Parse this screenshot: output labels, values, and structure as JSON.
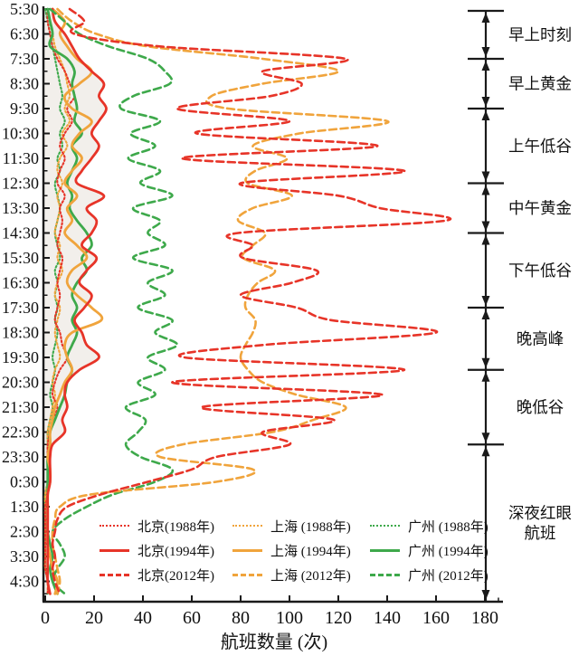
{
  "chart_data": {
    "type": "line",
    "orientation": "horizontal-time-vertical",
    "xlabel": "航班数量 (次)",
    "xlim": [
      0,
      180
    ],
    "x_ticks": [
      0,
      20,
      40,
      60,
      80,
      100,
      120,
      140,
      160,
      180
    ],
    "y_tick_labels": [
      "5:30",
      "6:30",
      "7:30",
      "8:30",
      "9:30",
      "10:30",
      "11:30",
      "12:30",
      "13:30",
      "14:30",
      "15:30",
      "16:30",
      "17:30",
      "18:30",
      "19:30",
      "20:30",
      "21:30",
      "22:30",
      "23:30",
      "0:30",
      "1:30",
      "2:30",
      "3:30",
      "4:30"
    ],
    "grid": false,
    "legend_position": "inside-bottom-left",
    "colors": {
      "beijing": "#e73428",
      "shanghai": "#f0a43c",
      "guangzhou": "#3ea94b",
      "axis": "#1a1a1a",
      "fill_under_beijing_1994": "#f2efeb"
    },
    "times": [
      "5:30",
      "6:00",
      "6:30",
      "7:00",
      "7:30",
      "8:00",
      "8:30",
      "9:00",
      "9:30",
      "10:00",
      "10:30",
      "11:00",
      "11:30",
      "12:00",
      "12:30",
      "13:00",
      "13:30",
      "14:00",
      "14:30",
      "15:00",
      "15:30",
      "16:00",
      "16:30",
      "17:00",
      "17:30",
      "18:00",
      "18:30",
      "19:00",
      "19:30",
      "20:00",
      "20:30",
      "21:00",
      "21:30",
      "22:00",
      "22:30",
      "23:00",
      "23:30",
      "0:00",
      "0:30",
      "1:00",
      "1:30",
      "2:00",
      "2:30",
      "3:00",
      "3:30",
      "4:00",
      "4:30",
      "5:00"
    ],
    "series": [
      {
        "id": "beijing-1988",
        "city": "beijing",
        "year": 1988,
        "label": "北京(1988年)",
        "style": "dotted",
        "values": [
          1,
          1,
          2,
          3,
          5,
          8,
          10,
          12,
          9,
          11,
          8,
          6,
          8,
          6,
          5,
          8,
          6,
          7,
          6,
          5,
          7,
          6,
          5,
          6,
          5,
          4,
          6,
          7,
          9,
          6,
          4,
          3,
          5,
          3,
          2,
          1,
          1,
          1,
          1,
          1,
          0,
          0,
          0,
          0,
          0,
          0,
          1,
          1
        ]
      },
      {
        "id": "beijing-1994",
        "city": "beijing",
        "year": 1994,
        "label": "北京(1994年)",
        "style": "solid",
        "area_fill": true,
        "values": [
          3,
          4,
          8,
          11,
          14,
          19,
          24,
          22,
          25,
          22,
          19,
          22,
          19,
          15,
          13,
          24,
          17,
          21,
          19,
          15,
          21,
          17,
          14,
          19,
          16,
          12,
          15,
          17,
          22,
          14,
          9,
          8,
          9,
          7,
          8,
          3,
          2,
          2,
          2,
          1,
          1,
          1,
          1,
          1,
          1,
          1,
          1,
          2
        ]
      },
      {
        "id": "beijing-2012",
        "city": "beijing",
        "year": 2012,
        "label": "北京(2012年)",
        "style": "dashed",
        "values": [
          10,
          16,
          12,
          47,
          123,
          89,
          105,
          92,
          54,
          100,
          62,
          136,
          56,
          147,
          80,
          120,
          137,
          164,
          79,
          85,
          81,
          111,
          101,
          80,
          103,
          117,
          160,
          89,
          57,
          147,
          52,
          138,
          64,
          118,
          89,
          100,
          70,
          60,
          42,
          23,
          9,
          5,
          4,
          3,
          4,
          3,
          4,
          6
        ]
      },
      {
        "id": "shanghai-1988",
        "city": "shanghai",
        "year": 1988,
        "label": "上海 (1988年)",
        "style": "dotted",
        "values": [
          1,
          2,
          3,
          4,
          6,
          8,
          9,
          10,
          8,
          10,
          7,
          9,
          6,
          5,
          7,
          5,
          6,
          5,
          4,
          6,
          5,
          7,
          5,
          4,
          6,
          5,
          4,
          5,
          6,
          4,
          3,
          4,
          3,
          2,
          1,
          1,
          1,
          1,
          1,
          0,
          0,
          0,
          0,
          0,
          0,
          0,
          1,
          1
        ]
      },
      {
        "id": "shanghai-1994",
        "city": "shanghai",
        "year": 1994,
        "label": "上海 (1994年)",
        "style": "solid",
        "values": [
          3,
          8,
          6,
          9,
          13,
          19,
          14,
          8,
          11,
          19,
          14,
          11,
          15,
          11,
          8,
          13,
          9,
          11,
          8,
          13,
          17,
          11,
          9,
          13,
          19,
          23,
          11,
          8,
          9,
          11,
          8,
          6,
          4,
          3,
          2,
          2,
          1,
          2,
          2,
          1,
          1,
          1,
          1,
          1,
          2,
          3,
          5,
          4
        ]
      },
      {
        "id": "shanghai-2012",
        "city": "shanghai",
        "year": 2012,
        "label": "上海 (2012年)",
        "style": "dashed",
        "values": [
          5,
          11,
          21,
          42,
          89,
          120,
          89,
          68,
          75,
          140,
          104,
          85,
          99,
          86,
          83,
          101,
          85,
          79,
          90,
          85,
          81,
          94,
          87,
          83,
          82,
          86,
          85,
          82,
          80,
          83,
          89,
          103,
          123,
          110,
          93,
          56,
          47,
          85,
          70,
          19,
          6,
          4,
          3,
          3,
          4,
          5,
          6,
          5
        ]
      },
      {
        "id": "guangzhou-1988",
        "city": "guangzhou",
        "year": 1988,
        "label": "广州 (1988年)",
        "style": "dotted",
        "values": [
          0,
          1,
          2,
          3,
          4,
          5,
          6,
          7,
          6,
          8,
          6,
          7,
          5,
          6,
          4,
          5,
          6,
          5,
          4,
          5,
          6,
          4,
          5,
          4,
          5,
          4,
          5,
          4,
          3,
          4,
          3,
          2,
          3,
          2,
          1,
          1,
          1,
          1,
          1,
          0,
          0,
          0,
          0,
          0,
          0,
          0,
          1,
          1
        ]
      },
      {
        "id": "guangzhou-1994",
        "city": "guangzhou",
        "year": 1994,
        "label": "广州 (1994年)",
        "style": "solid",
        "values": [
          1,
          2,
          3,
          2,
          9,
          12,
          11,
          12,
          13,
          12,
          15,
          11,
          13,
          11,
          9,
          11,
          10,
          13,
          17,
          19,
          15,
          17,
          13,
          11,
          13,
          11,
          13,
          11,
          9,
          11,
          9,
          8,
          6,
          4,
          2,
          2,
          1,
          1,
          1,
          1,
          1,
          1,
          1,
          2,
          3,
          2,
          3,
          5
        ]
      },
      {
        "id": "guangzhou-2012",
        "city": "guangzhou",
        "year": 2012,
        "label": "广州 (2012年)",
        "style": "dashed",
        "values": [
          2,
          8,
          14,
          26,
          42,
          49,
          51,
          36,
          31,
          47,
          35,
          45,
          34,
          47,
          39,
          52,
          36,
          47,
          42,
          49,
          36,
          52,
          42,
          49,
          38,
          52,
          45,
          54,
          42,
          49,
          38,
          45,
          33,
          41,
          38,
          33,
          39,
          52,
          45,
          28,
          17,
          8,
          3,
          6,
          8,
          5,
          3,
          8
        ]
      }
    ],
    "legend_columns": [
      [
        "beijing-1988",
        "beijing-1994",
        "beijing-2012"
      ],
      [
        "shanghai-1988",
        "shanghai-1994",
        "shanghai-2012"
      ],
      [
        "guangzhou-1988",
        "guangzhou-1994",
        "guangzhou-2012"
      ]
    ],
    "annotations_right": [
      {
        "label": "早上时刻",
        "lines": [
          "早上时刻"
        ],
        "from": "5:30",
        "to": "7:30"
      },
      {
        "label": "早上黄金",
        "lines": [
          "早上黄金"
        ],
        "from": "7:30",
        "to": "9:30"
      },
      {
        "label": "上午低谷",
        "lines": [
          "上午低谷"
        ],
        "from": "9:30",
        "to": "12:30"
      },
      {
        "label": "中午黄金",
        "lines": [
          "中午黄金"
        ],
        "from": "12:30",
        "to": "14:30"
      },
      {
        "label": "下午低谷",
        "lines": [
          "下午低谷"
        ],
        "from": "14:30",
        "to": "17:30"
      },
      {
        "label": "晚高峰",
        "lines": [
          "晚高峰"
        ],
        "from": "17:30",
        "to": "20:00"
      },
      {
        "label": "晚低谷",
        "lines": [
          "晚低谷"
        ],
        "from": "20:00",
        "to": "23:00"
      },
      {
        "label": "深夜红眼航班",
        "lines": [
          "深夜红眼",
          "航班"
        ],
        "from": "23:00",
        "to": "5:20"
      }
    ]
  }
}
